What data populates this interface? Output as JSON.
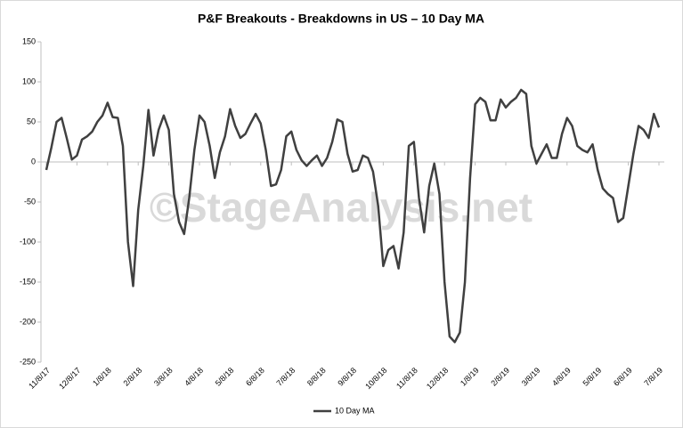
{
  "chart_data": {
    "type": "line",
    "title": "P&F Breakouts - Breakdowns in US – 10 Day MA",
    "watermark": "©StageAnalysis.net",
    "categories": [
      "11/8/17",
      null,
      null,
      null,
      null,
      null,
      "12/8/17",
      null,
      null,
      null,
      null,
      null,
      "1/8/18",
      null,
      null,
      null,
      null,
      null,
      "2/8/18",
      null,
      null,
      null,
      null,
      null,
      "3/8/18",
      null,
      null,
      null,
      null,
      null,
      "4/8/18",
      null,
      null,
      null,
      null,
      null,
      "5/8/18",
      null,
      null,
      null,
      null,
      null,
      "6/8/18",
      null,
      null,
      null,
      null,
      null,
      "7/8/18",
      null,
      null,
      null,
      null,
      null,
      "8/8/18",
      null,
      null,
      null,
      null,
      null,
      "9/8/18",
      null,
      null,
      null,
      null,
      null,
      "10/8/18",
      null,
      null,
      null,
      null,
      null,
      "11/8/18",
      null,
      null,
      null,
      null,
      null,
      "12/8/18",
      null,
      null,
      null,
      null,
      null,
      "1/8/19",
      null,
      null,
      null,
      null,
      null,
      "2/8/19",
      null,
      null,
      null,
      null,
      null,
      "3/8/19",
      null,
      null,
      null,
      null,
      null,
      "4/8/19",
      null,
      null,
      null,
      null,
      null,
      "5/8/19",
      null,
      null,
      null,
      null,
      null,
      "6/8/19",
      null,
      null,
      null,
      null,
      null,
      "7/8/19"
    ],
    "series": [
      {
        "name": "10 Day MA",
        "color": "#404040",
        "values": [
          -10,
          18,
          50,
          55,
          30,
          3,
          8,
          28,
          32,
          38,
          50,
          58,
          74,
          56,
          55,
          20,
          -100,
          -155,
          -60,
          -5,
          65,
          8,
          40,
          58,
          40,
          -40,
          -75,
          -90,
          -45,
          15,
          58,
          50,
          20,
          -20,
          12,
          32,
          66,
          45,
          30,
          35,
          48,
          60,
          48,
          15,
          -30,
          -28,
          -10,
          32,
          38,
          15,
          2,
          -5,
          2,
          8,
          -5,
          5,
          25,
          53,
          50,
          10,
          -12,
          -10,
          8,
          5,
          -12,
          -55,
          -130,
          -110,
          -105,
          -133,
          -88,
          20,
          25,
          -45,
          -88,
          -30,
          -2,
          -40,
          -150,
          -218,
          -225,
          -213,
          -150,
          -20,
          72,
          80,
          75,
          52,
          52,
          78,
          68,
          75,
          80,
          90,
          85,
          20,
          -2,
          10,
          22,
          5,
          5,
          35,
          55,
          45,
          20,
          15,
          12,
          22,
          -10,
          -33,
          -40,
          -45,
          -75,
          -70,
          -30,
          10,
          45,
          40,
          30,
          60,
          43
        ]
      }
    ],
    "ylim": [
      -250,
      150
    ],
    "yticks": [
      -250,
      -200,
      -150,
      -100,
      -50,
      0,
      50,
      100,
      150
    ],
    "grid": false
  }
}
